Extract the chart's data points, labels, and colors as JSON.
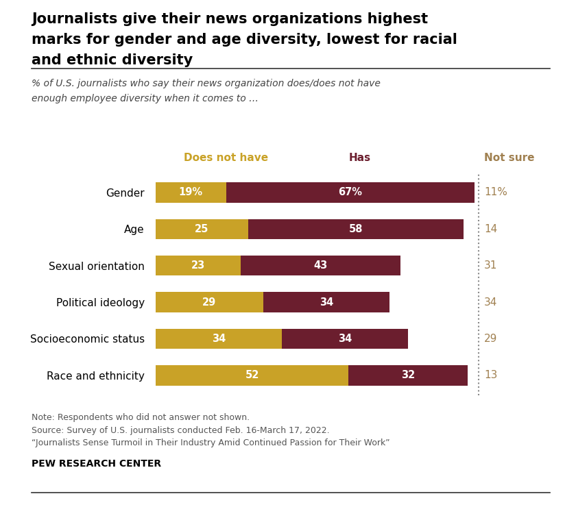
{
  "title_line1": "Journalists give their news organizations highest",
  "title_line2": "marks for gender and age diversity, lowest for racial",
  "title_line3": "and ethnic diversity",
  "subtitle_line1": "% of U.S. journalists who say their news organization does/does not have",
  "subtitle_line2": "enough employee diversity when it comes to …",
  "categories": [
    "Gender",
    "Age",
    "Sexual orientation",
    "Political ideology",
    "Socioeconomic status",
    "Race and ethnicity"
  ],
  "does_not_have": [
    19,
    25,
    23,
    29,
    34,
    52
  ],
  "has": [
    67,
    58,
    43,
    34,
    34,
    32
  ],
  "not_sure": [
    11,
    14,
    31,
    34,
    29,
    13
  ],
  "does_not_have_labels": [
    "19%",
    "25",
    "23",
    "29",
    "34",
    "52"
  ],
  "has_labels": [
    "67%",
    "58",
    "43",
    "34",
    "34",
    "32"
  ],
  "not_sure_labels": [
    "11%",
    "14",
    "31",
    "34",
    "29",
    "13"
  ],
  "color_does_not_have": "#C9A227",
  "color_has": "#6B1E2E",
  "color_not_sure": "#A08050",
  "legend_does_not_have": "Does not have",
  "legend_has": "Has",
  "legend_not_sure": "Not sure",
  "note_line1": "Note: Respondents who did not answer not shown.",
  "note_line2": "Source: Survey of U.S. journalists conducted Feb. 16-March 17, 2022.",
  "note_line3": "“Journalists Sense Turmoil in Their Industry Amid Continued Passion for Their Work”",
  "footer": "PEW RESEARCH CENTER",
  "bg_color": "#FFFFFF",
  "bar_height": 0.55
}
